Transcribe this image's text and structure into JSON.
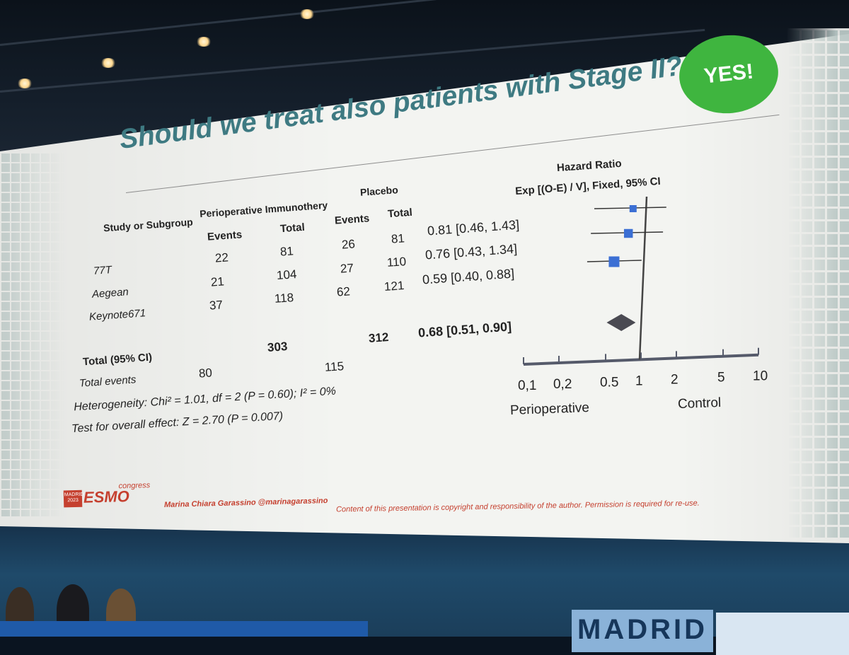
{
  "slide": {
    "title": "Should we treat also patients with Stage II?",
    "badge": "YES!",
    "plot_title_1": "Hazard Ratio",
    "plot_title_2": "Exp [(O-E) / V], Fixed, 95% CI",
    "headers": {
      "study": "Study or Subgroup",
      "group1": "Perioperative  Immunothery",
      "group2": "Placebo",
      "events": "Events",
      "total": "Total"
    },
    "studies": [
      {
        "name": "77T",
        "events1": "22",
        "total1": "81",
        "events2": "26",
        "total2": "81",
        "hr": "0.81 [0.46, 1.43]",
        "hr_value": 0.81
      },
      {
        "name": "Aegean",
        "events1": "21",
        "total1": "104",
        "events2": "27",
        "total2": "110",
        "hr": "0.76 [0.43, 1.34]",
        "hr_value": 0.76
      },
      {
        "name": "Keynote671",
        "events1": "37",
        "total1": "118",
        "events2": "62",
        "total2": "121",
        "hr": "0.59 [0.40, 0.88]",
        "hr_value": 0.59
      }
    ],
    "total": {
      "label": "Total (95% CI)",
      "total1": "303",
      "total2": "312",
      "hr": "0.68 [0.51, 0.90]",
      "hr_value": 0.68,
      "events_label": "Total events",
      "events1": "80",
      "events2": "115"
    },
    "heterogeneity": "Heterogeneity: Chi² = 1.01, df = 2 (P = 0.60); I² = 0%",
    "overall_effect": "Test for overall effect: Z = 2.70 (P = 0.007)",
    "axis_ticks": [
      "0,1",
      "0,2",
      "0.5",
      "1",
      "2",
      "5",
      "10"
    ],
    "axis_left_label": "Perioperative",
    "axis_right_label": "Control",
    "footer": {
      "logo_city": "MADRID 2023",
      "logo_text": "ESMO",
      "logo_congress": "congress",
      "author": "Marina Chiara Garassino @marinagarassino",
      "copyright": "Content of this presentation is copyright and responsibility of the author. Permission is required for re-use."
    }
  },
  "venue_sign": "MADRID",
  "colors": {
    "title": "#3e7a82",
    "badge": "#3fb53f",
    "marker": "#3b6fd4",
    "diamond": "#4a4a52",
    "footer_red": "#c5402f"
  }
}
